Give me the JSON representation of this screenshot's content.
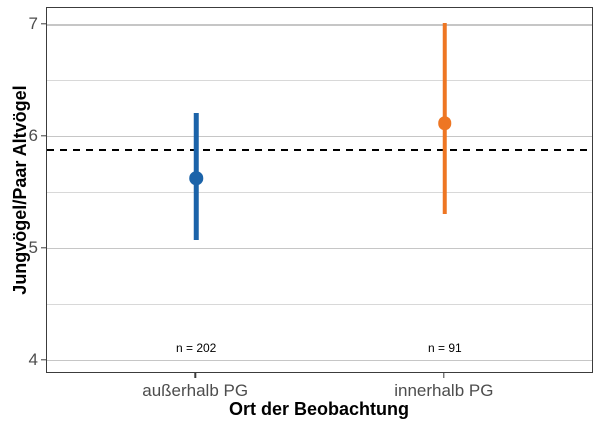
{
  "chart_data": {
    "type": "pointrange",
    "title": "",
    "xlabel": "Ort der Beobachtung",
    "ylabel": "Jungvögel/Paar Altvögel",
    "categories": [
      "außerhalb PG",
      "innerhalb PG"
    ],
    "series": [
      {
        "name": "außerhalb PG",
        "mean": 5.63,
        "ci_low": 5.08,
        "ci_high": 6.21,
        "n": 202,
        "n_label": "n = 202",
        "color": "#1b63a9"
      },
      {
        "name": "innerhalb PG",
        "mean": 6.12,
        "ci_low": 5.31,
        "ci_high": 7.02,
        "n": 91,
        "n_label": "n = 91",
        "color": "#ee7623"
      }
    ],
    "reference_line": {
      "y": 5.88,
      "style": "dashed",
      "color": "#000000"
    },
    "annotation_y": 4.11,
    "ylim": [
      3.88,
      7.15
    ],
    "yticks": [
      7,
      6,
      5,
      4
    ],
    "y_minor_ticks": [
      6.5,
      5.5,
      4.5
    ],
    "grid": true,
    "legend": "none",
    "colors": {
      "axis_text": "#4d4d4d",
      "axis_title": "#000000",
      "grid_major": "#c6c6c6",
      "grid_minor": "#d8d8d8",
      "panel_border": "#3c3c3c",
      "background": "#ffffff"
    }
  }
}
